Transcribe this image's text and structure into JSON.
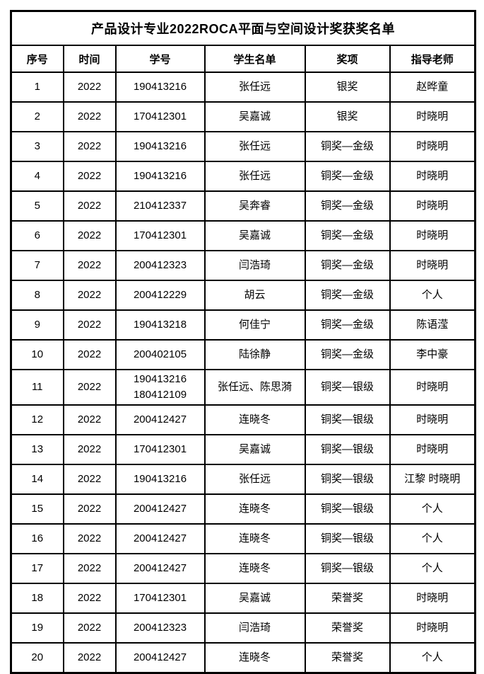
{
  "table": {
    "title": "产品设计专业2022ROCA平面与空间设计奖获奖名单",
    "columns": [
      {
        "key": "no",
        "label": "序号"
      },
      {
        "key": "year",
        "label": "时间"
      },
      {
        "key": "student_id",
        "label": "学号"
      },
      {
        "key": "name",
        "label": "学生名单"
      },
      {
        "key": "award",
        "label": "奖项"
      },
      {
        "key": "teacher",
        "label": "指导老师"
      }
    ],
    "rows": [
      {
        "no": "1",
        "year": "2022",
        "student_id": "190413216",
        "name": "张任远",
        "award": "银奖",
        "teacher": "赵晔童"
      },
      {
        "no": "2",
        "year": "2022",
        "student_id": "170412301",
        "name": "吴嘉诚",
        "award": "银奖",
        "teacher": "时晓明"
      },
      {
        "no": "3",
        "year": "2022",
        "student_id": "190413216",
        "name": "张任远",
        "award": "铜奖—金级",
        "teacher": "时晓明"
      },
      {
        "no": "4",
        "year": "2022",
        "student_id": "190413216",
        "name": "张任远",
        "award": "铜奖—金级",
        "teacher": "时晓明"
      },
      {
        "no": "5",
        "year": "2022",
        "student_id": "210412337",
        "name": "吴奔睿",
        "award": "铜奖—金级",
        "teacher": "时晓明"
      },
      {
        "no": "6",
        "year": "2022",
        "student_id": "170412301",
        "name": "吴嘉诚",
        "award": "铜奖—金级",
        "teacher": "时晓明"
      },
      {
        "no": "7",
        "year": "2022",
        "student_id": "200412323",
        "name": "闫浩琦",
        "award": "铜奖—金级",
        "teacher": "时晓明"
      },
      {
        "no": "8",
        "year": "2022",
        "student_id": "200412229",
        "name": "胡云",
        "award": "铜奖—金级",
        "teacher": "个人"
      },
      {
        "no": "9",
        "year": "2022",
        "student_id": "190413218",
        "name": "何佳宁",
        "award": "铜奖—金级",
        "teacher": "陈语滢"
      },
      {
        "no": "10",
        "year": "2022",
        "student_id": "200402105",
        "name": "陆徐静",
        "award": "铜奖—金级",
        "teacher": "李中豪"
      },
      {
        "no": "11",
        "year": "2022",
        "student_id": [
          "190413216",
          "180412109"
        ],
        "name": "张任远、陈思漪",
        "award": "铜奖—银级",
        "teacher": "时晓明"
      },
      {
        "no": "12",
        "year": "2022",
        "student_id": "200412427",
        "name": "连晓冬",
        "award": "铜奖—银级",
        "teacher": "时晓明"
      },
      {
        "no": "13",
        "year": "2022",
        "student_id": "170412301",
        "name": "吴嘉诚",
        "award": "铜奖—银级",
        "teacher": "时晓明"
      },
      {
        "no": "14",
        "year": "2022",
        "student_id": "190413216",
        "name": "张任远",
        "award": "铜奖—银级",
        "teacher": "江黎 时晓明"
      },
      {
        "no": "15",
        "year": "2022",
        "student_id": "200412427",
        "name": "连晓冬",
        "award": "铜奖—银级",
        "teacher": "个人"
      },
      {
        "no": "16",
        "year": "2022",
        "student_id": "200412427",
        "name": "连晓冬",
        "award": "铜奖—银级",
        "teacher": "个人"
      },
      {
        "no": "17",
        "year": "2022",
        "student_id": "200412427",
        "name": "连晓冬",
        "award": "铜奖—银级",
        "teacher": "个人"
      },
      {
        "no": "18",
        "year": "2022",
        "student_id": "170412301",
        "name": "吴嘉诚",
        "award": "荣誉奖",
        "teacher": "时晓明"
      },
      {
        "no": "19",
        "year": "2022",
        "student_id": "200412323",
        "name": "闫浩琦",
        "award": "荣誉奖",
        "teacher": "时晓明"
      },
      {
        "no": "20",
        "year": "2022",
        "student_id": "200412427",
        "name": "连晓冬",
        "award": "荣誉奖",
        "teacher": "个人"
      }
    ]
  },
  "colors": {
    "background": "#ffffff",
    "border": "#000000",
    "text": "#000000"
  }
}
